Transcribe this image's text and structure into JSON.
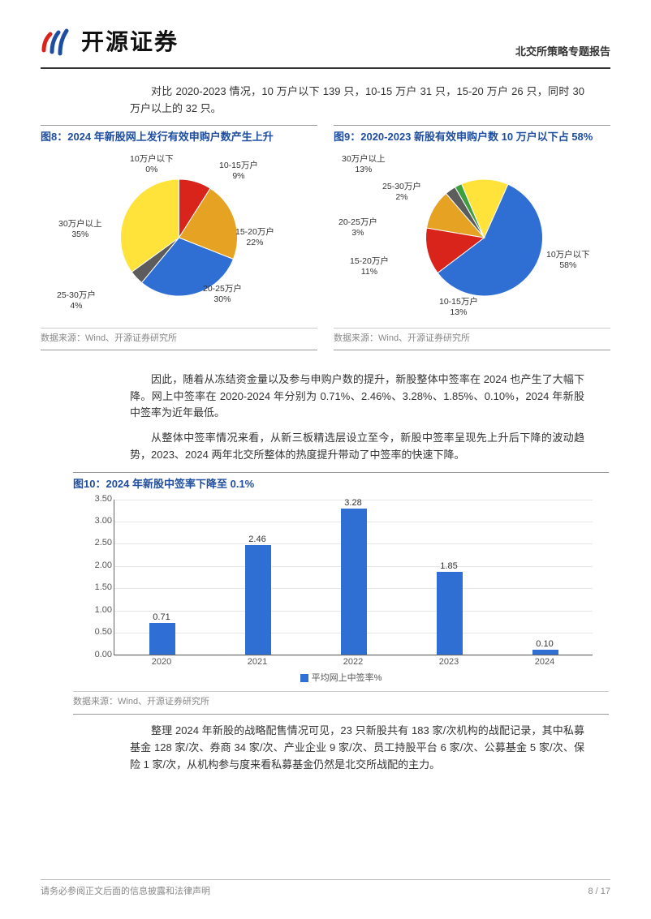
{
  "header": {
    "company_name": "开源证券",
    "report_type": "北交所策略专题报告",
    "logo_bars": [
      "#d9241c",
      "#1f4ea1",
      "#1f4ea1"
    ]
  },
  "intro_para": "对比 2020-2023 情况，10 万户以下 139 只，10-15 万户 31 只，15-20 万户 26 只，同时 30 万户以上的 32 只。",
  "chart8": {
    "title": "图8：2024 年新股网上发行有效申购户数产生上升",
    "type": "pie",
    "slices": [
      {
        "label": "10万户以下",
        "pct": 0,
        "color": "#ffffff"
      },
      {
        "label": "10-15万户",
        "pct": 9,
        "color": "#d9241c"
      },
      {
        "label": "15-20万户",
        "pct": 22,
        "color": "#e6a323"
      },
      {
        "label": "20-25万户",
        "pct": 30,
        "color": "#2f6fd4"
      },
      {
        "label": "25-30万户",
        "pct": 4,
        "color": "#5c5c5c"
      },
      {
        "label": "30万户以上",
        "pct": 35,
        "color": "#ffe23a"
      }
    ],
    "source": "数据来源：Wind、开源证券研究所"
  },
  "chart9": {
    "title": "图9：2020-2023 新股有效申购户数 10 万户以下占 58%",
    "type": "pie",
    "slices": [
      {
        "label": "10万户以下",
        "pct": 58,
        "color": "#2f6fd4"
      },
      {
        "label": "10-15万户",
        "pct": 13,
        "color": "#d9241c"
      },
      {
        "label": "15-20万户",
        "pct": 11,
        "color": "#e6a323"
      },
      {
        "label": "20-25万户",
        "pct": 3,
        "color": "#5c5c5c"
      },
      {
        "label": "25-30万户",
        "pct": 2,
        "color": "#3f9e3f"
      },
      {
        "label": "30万户以上",
        "pct": 13,
        "color": "#ffe23a"
      }
    ],
    "source": "数据来源：Wind、开源证券研究所"
  },
  "para2": "因此，随着从冻结资金量以及参与申购户数的提升，新股整体中签率在 2024 也产生了大幅下降。网上中签率在 2020-2024 年分别为 0.71%、2.46%、3.28%、1.85%、0.10%，2024 年新股中签率为近年最低。",
  "para3": "从整体中签率情况来看，从新三板精选层设立至今，新股中签率呈现先上升后下降的波动趋势，2023、2024 两年北交所整体的热度提升带动了中签率的快速下降。",
  "chart10": {
    "title": "图10：2024 年新股中签率下降至 0.1%",
    "type": "bar",
    "categories": [
      "2020",
      "2021",
      "2022",
      "2023",
      "2024"
    ],
    "values": [
      0.71,
      2.46,
      3.28,
      1.85,
      0.1
    ],
    "bar_color": "#2f6fd4",
    "ylim": [
      0,
      3.5
    ],
    "ytick_step": 0.5,
    "y_format": "0.00",
    "background_color": "#ffffff",
    "grid_color": "#e7e7e7",
    "legend_label": "平均网上中签率%",
    "label_fontsize": 11,
    "source": "数据来源：Wind、开源证券研究所"
  },
  "para4": "整理 2024 年新股的战略配售情况可见，23 只新股共有 183 家/次机构的战配记录，其中私募基金 128 家/次、券商 34 家/次、产业企业 9 家/次、员工持股平台 6 家/次、公募基金 5 家/次、保险 1 家/次，从机构参与度来看私募基金仍然是北交所战配的主力。",
  "footer": {
    "left": "请务必参阅正文后面的信息披露和法律声明",
    "right": "8 / 17"
  }
}
